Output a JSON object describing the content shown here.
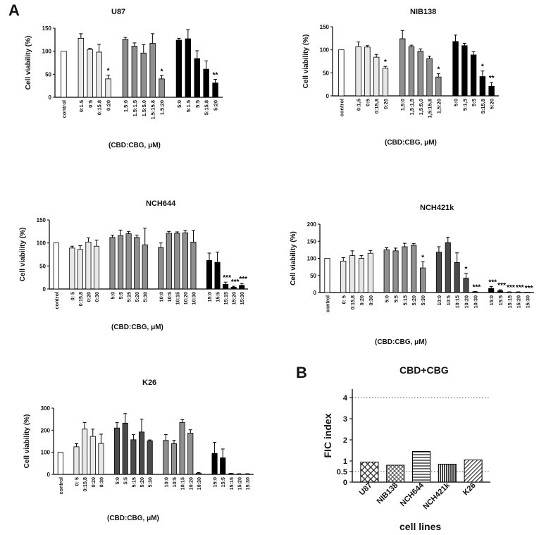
{
  "figure": {
    "panel_a_letter": "A",
    "panel_b_letter": "B"
  },
  "colors": {
    "control": "#ffffff",
    "g1": "#e8e8e8",
    "g2": "#8f8f8f",
    "g3": "#4a4a4a",
    "g4": "#000000",
    "axis": "#000000",
    "grid": "#555555"
  },
  "chart_data": [
    {
      "id": "u87",
      "type": "bar",
      "title": "U87",
      "ylabel": "Cell viability (%)",
      "xlabel": "(CBD:CBG, μM)",
      "ylim": [
        0,
        150
      ],
      "yticks": [
        0,
        50,
        100,
        150
      ],
      "groups": [
        {
          "style": "control",
          "bars": [
            {
              "label": "control",
              "value": 100,
              "err": 0,
              "sig": ""
            }
          ]
        },
        {
          "style": "g1",
          "bars": [
            {
              "label": "0:1.5",
              "value": 128,
              "err": 10,
              "sig": ""
            },
            {
              "label": "0:5",
              "value": 104,
              "err": 2,
              "sig": ""
            },
            {
              "label": "0:15.8",
              "value": 98,
              "err": 17,
              "sig": ""
            },
            {
              "label": "0:20",
              "value": 40,
              "err": 8,
              "sig": "*"
            }
          ]
        },
        {
          "style": "g2",
          "bars": [
            {
              "label": "1.5:0",
              "value": 126,
              "err": 4,
              "sig": ""
            },
            {
              "label": "1.5:1.5",
              "value": 111,
              "err": 7,
              "sig": ""
            },
            {
              "label": "1.5:5.0",
              "value": 96,
              "err": 18,
              "sig": ""
            },
            {
              "label": "1.5:15.8",
              "value": 117,
              "err": 21,
              "sig": ""
            },
            {
              "label": "1.5:20",
              "value": 40,
              "err": 7,
              "sig": "*"
            }
          ]
        },
        {
          "style": "g4",
          "bars": [
            {
              "label": "5:0",
              "value": 124,
              "err": 4,
              "sig": ""
            },
            {
              "label": "5:1.5",
              "value": 127,
              "err": 20,
              "sig": ""
            },
            {
              "label": "5:5",
              "value": 84,
              "err": 17,
              "sig": ""
            },
            {
              "label": "5:15.8",
              "value": 61,
              "err": 18,
              "sig": ""
            },
            {
              "label": "5:20",
              "value": 31,
              "err": 8,
              "sig": "**"
            }
          ]
        }
      ]
    },
    {
      "id": "nib138",
      "type": "bar",
      "title": "NIB138",
      "ylabel": "Cell viability (%)",
      "xlabel": "(CBD:CBG, μM)",
      "ylim": [
        0,
        150
      ],
      "yticks": [
        0,
        50,
        100,
        150
      ],
      "groups": [
        {
          "style": "control",
          "bars": [
            {
              "label": "control",
              "value": 100,
              "err": 0,
              "sig": ""
            }
          ]
        },
        {
          "style": "g1",
          "bars": [
            {
              "label": "0:1,5",
              "value": 107,
              "err": 10,
              "sig": ""
            },
            {
              "label": "0:5",
              "value": 106,
              "err": 3,
              "sig": ""
            },
            {
              "label": "0:15,8",
              "value": 84,
              "err": 6,
              "sig": ""
            },
            {
              "label": "0:20",
              "value": 60,
              "err": 4,
              "sig": "*"
            }
          ]
        },
        {
          "style": "g2",
          "bars": [
            {
              "label": "1,5:0",
              "value": 124,
              "err": 18,
              "sig": ""
            },
            {
              "label": "1,5:1,5",
              "value": 107,
              "err": 3,
              "sig": ""
            },
            {
              "label": "1,5:5,0",
              "value": 97,
              "err": 5,
              "sig": ""
            },
            {
              "label": "1,5:15,8",
              "value": 81,
              "err": 5,
              "sig": ""
            },
            {
              "label": "1,5:20",
              "value": 41,
              "err": 7,
              "sig": "*"
            }
          ]
        },
        {
          "style": "g4",
          "bars": [
            {
              "label": "5:0",
              "value": 118,
              "err": 14,
              "sig": ""
            },
            {
              "label": "5:1,5",
              "value": 109,
              "err": 5,
              "sig": ""
            },
            {
              "label": "5:5",
              "value": 89,
              "err": 7,
              "sig": ""
            },
            {
              "label": "5:15,8",
              "value": 42,
              "err": 12,
              "sig": "*"
            },
            {
              "label": "5:20",
              "value": 21,
              "err": 8,
              "sig": "**"
            }
          ]
        }
      ]
    },
    {
      "id": "nch644",
      "type": "bar",
      "title": "NCH644",
      "ylabel": "Cell viability (%)",
      "xlabel": "(CBD:CBG, μM)",
      "ylim": [
        0,
        150
      ],
      "yticks": [
        0,
        50,
        100,
        150
      ],
      "groups": [
        {
          "style": "control",
          "bars": [
            {
              "label": "control",
              "value": 100,
              "err": 0,
              "sig": ""
            }
          ]
        },
        {
          "style": "g1",
          "bars": [
            {
              "label": "0: 5",
              "value": 89,
              "err": 4,
              "sig": ""
            },
            {
              "label": "0:15,8",
              "value": 86,
              "err": 8,
              "sig": ""
            },
            {
              "label": "0:20",
              "value": 102,
              "err": 9,
              "sig": ""
            },
            {
              "label": "0:30",
              "value": 93,
              "err": 13,
              "sig": ""
            }
          ]
        },
        {
          "style": "g2",
          "bars": [
            {
              "label": "5:0",
              "value": 112,
              "err": 5,
              "sig": ""
            },
            {
              "label": "5:5",
              "value": 116,
              "err": 12,
              "sig": ""
            },
            {
              "label": "5:15",
              "value": 120,
              "err": 5,
              "sig": ""
            },
            {
              "label": "5:20",
              "value": 112,
              "err": 5,
              "sig": ""
            },
            {
              "label": "5:30",
              "value": 96,
              "err": 36,
              "sig": ""
            }
          ]
        },
        {
          "style": "g2",
          "bars": [
            {
              "label": "10:0",
              "value": 90,
              "err": 10,
              "sig": ""
            },
            {
              "label": "10:5",
              "value": 121,
              "err": 4,
              "sig": ""
            },
            {
              "label": "10:15",
              "value": 121,
              "err": 3,
              "sig": ""
            },
            {
              "label": "10:20",
              "value": 122,
              "err": 5,
              "sig": ""
            },
            {
              "label": "10:30",
              "value": 102,
              "err": 25,
              "sig": ""
            }
          ]
        },
        {
          "style": "g4",
          "bars": [
            {
              "label": "15:0",
              "value": 62,
              "err": 16,
              "sig": ""
            },
            {
              "label": "15:5",
              "value": 58,
              "err": 22,
              "sig": ""
            },
            {
              "label": "15:15",
              "value": 10,
              "err": 5,
              "sig": "***"
            },
            {
              "label": "15:20",
              "value": 4,
              "err": 2,
              "sig": "***"
            },
            {
              "label": "15:30",
              "value": 8,
              "err": 4,
              "sig": "***"
            }
          ]
        }
      ]
    },
    {
      "id": "nch421k",
      "type": "bar",
      "title": "NCH421k",
      "ylabel": "Cell viability (%)",
      "xlabel": "(CBD:CBG, μM)",
      "ylim": [
        0,
        200
      ],
      "yticks": [
        0,
        50,
        100,
        150,
        200
      ],
      "groups": [
        {
          "style": "control",
          "bars": [
            {
              "label": "control",
              "value": 100,
              "err": 0,
              "sig": ""
            }
          ]
        },
        {
          "style": "g1",
          "bars": [
            {
              "label": "0: 5",
              "value": 92,
              "err": 10,
              "sig": ""
            },
            {
              "label": "0:15,8",
              "value": 108,
              "err": 14,
              "sig": ""
            },
            {
              "label": "0:20",
              "value": 100,
              "err": 8,
              "sig": ""
            },
            {
              "label": "0:30",
              "value": 115,
              "err": 8,
              "sig": ""
            }
          ]
        },
        {
          "style": "g2",
          "bars": [
            {
              "label": "5:0",
              "value": 125,
              "err": 6,
              "sig": ""
            },
            {
              "label": "5:5",
              "value": 122,
              "err": 8,
              "sig": ""
            },
            {
              "label": "5:15",
              "value": 134,
              "err": 10,
              "sig": ""
            },
            {
              "label": "5:20",
              "value": 138,
              "err": 5,
              "sig": ""
            },
            {
              "label": "5:30",
              "value": 72,
              "err": 18,
              "sig": "*"
            }
          ]
        },
        {
          "style": "g3",
          "bars": [
            {
              "label": "10:0",
              "value": 118,
              "err": 16,
              "sig": ""
            },
            {
              "label": "10:5",
              "value": 146,
              "err": 16,
              "sig": ""
            },
            {
              "label": "10:15",
              "value": 88,
              "err": 28,
              "sig": ""
            },
            {
              "label": "10:20",
              "value": 42,
              "err": 14,
              "sig": "*"
            },
            {
              "label": "10:30",
              "value": 2,
              "err": 1,
              "sig": "***"
            }
          ]
        },
        {
          "style": "g4",
          "bars": [
            {
              "label": "15:0",
              "value": 12,
              "err": 6,
              "sig": "***"
            },
            {
              "label": "15:5",
              "value": 5,
              "err": 3,
              "sig": "***"
            },
            {
              "label": "15:15",
              "value": 1,
              "err": 1,
              "sig": "***"
            },
            {
              "label": "15:20",
              "value": 1,
              "err": 1,
              "sig": "***"
            },
            {
              "label": "15:30",
              "value": 0,
              "err": 0,
              "sig": "***"
            }
          ]
        }
      ]
    },
    {
      "id": "k26",
      "type": "bar",
      "title": "K26",
      "ylabel": "Cell viability (%)",
      "xlabel": "(CBD:CBG, μM)",
      "ylim": [
        0,
        300
      ],
      "yticks": [
        0,
        100,
        200,
        300
      ],
      "groups": [
        {
          "style": "control",
          "bars": [
            {
              "label": "control",
              "value": 100,
              "err": 0,
              "sig": ""
            }
          ]
        },
        {
          "style": "g1",
          "bars": [
            {
              "label": "0: 5",
              "value": 125,
              "err": 14,
              "sig": ""
            },
            {
              "label": "0:15,8",
              "value": 205,
              "err": 30,
              "sig": ""
            },
            {
              "label": "0:20",
              "value": 172,
              "err": 33,
              "sig": ""
            },
            {
              "label": "0:30",
              "value": 140,
              "err": 42,
              "sig": ""
            }
          ]
        },
        {
          "style": "g3",
          "bars": [
            {
              "label": "5:0",
              "value": 210,
              "err": 25,
              "sig": ""
            },
            {
              "label": "5:5",
              "value": 232,
              "err": 43,
              "sig": ""
            },
            {
              "label": "5:15",
              "value": 157,
              "err": 23,
              "sig": ""
            },
            {
              "label": "5:20",
              "value": 192,
              "err": 58,
              "sig": ""
            },
            {
              "label": "5:30",
              "value": 152,
              "err": 4,
              "sig": ""
            }
          ]
        },
        {
          "style": "g2",
          "bars": [
            {
              "label": "10:0",
              "value": 154,
              "err": 26,
              "sig": ""
            },
            {
              "label": "10:5",
              "value": 139,
              "err": 15,
              "sig": ""
            },
            {
              "label": "10:15",
              "value": 235,
              "err": 13,
              "sig": ""
            },
            {
              "label": "10:20",
              "value": 187,
              "err": 15,
              "sig": ""
            },
            {
              "label": "10:30",
              "value": 5,
              "err": 3,
              "sig": ""
            }
          ]
        },
        {
          "style": "g4",
          "bars": [
            {
              "label": "15:0",
              "value": 95,
              "err": 50,
              "sig": ""
            },
            {
              "label": "15:5",
              "value": 75,
              "err": 40,
              "sig": ""
            },
            {
              "label": "15:15",
              "value": 3,
              "err": 2,
              "sig": ""
            },
            {
              "label": "15:20",
              "value": 2,
              "err": 1,
              "sig": ""
            },
            {
              "label": "15:30",
              "value": 2,
              "err": 1,
              "sig": ""
            }
          ]
        }
      ]
    },
    {
      "id": "fic",
      "type": "bar",
      "title": "CBD+CBG",
      "ylabel": "FIC index",
      "xlabel": "cell lines",
      "ylim": [
        0,
        4.4
      ],
      "yticks": [
        0,
        0.5,
        1,
        2,
        3,
        4
      ],
      "ytick_labels": [
        "0",
        "0.5",
        "1",
        "2",
        "3",
        "4"
      ],
      "reference_lines": [
        0.5,
        4
      ],
      "bars": [
        {
          "label": "U87",
          "value": 0.95,
          "pattern": "cross"
        },
        {
          "label": "NIB138",
          "value": 0.8,
          "pattern": "cross-fine"
        },
        {
          "label": "NCH644",
          "value": 1.45,
          "pattern": "horizontal"
        },
        {
          "label": "NCH421k",
          "value": 0.85,
          "pattern": "vertical"
        },
        {
          "label": "K26",
          "value": 1.05,
          "pattern": "diagonal"
        }
      ]
    }
  ]
}
